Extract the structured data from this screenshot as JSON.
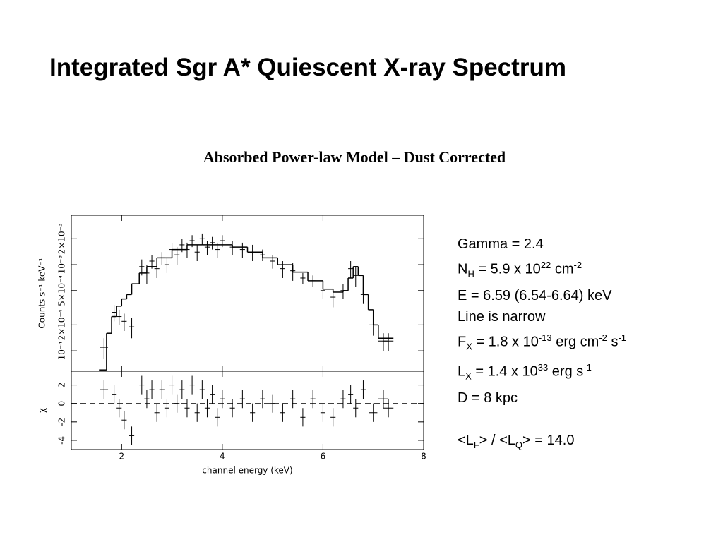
{
  "title": "Integrated Sgr A* Quiescent X-ray Spectrum",
  "subtitle": "Absorbed Power-law Model – Dust Corrected",
  "params": [
    [
      "Gamma = 2.4"
    ],
    [
      "N",
      {
        "sub": "H"
      },
      " = 5.9 x 10",
      {
        "sup": "22"
      },
      " cm",
      {
        "sup": "-2"
      }
    ],
    [
      "E = 6.59 (6.54-6.64) keV"
    ],
    [
      "Line is narrow"
    ],
    [
      "F",
      {
        "sub": "X"
      },
      " = 1.8 x 10",
      {
        "sup": "-13"
      },
      " erg cm",
      {
        "sup": "-2"
      },
      " s",
      {
        "sup": "-1"
      }
    ],
    [
      "L",
      {
        "sub": "X"
      },
      " = 1.4 x 10",
      {
        "sup": "33"
      },
      " erg s",
      {
        "sup": "-1"
      }
    ],
    [
      "D = 8 kpc"
    ],
    [
      "<L",
      {
        "sub": "F"
      },
      "> / <L",
      {
        "sub": "Q"
      },
      "> = 14.0"
    ]
  ],
  "chart_data": [
    {
      "type": "errorbar",
      "yscale": "log",
      "ylabel": "Counts s⁻¹ keV⁻¹",
      "xlim": [
        1,
        8
      ],
      "xticks": [
        2,
        4,
        6,
        8
      ],
      "ylim": [
        5.8e-05,
        0.00375
      ],
      "yticks": [
        {
          "value": 0.0001,
          "label": "10⁻⁴"
        },
        {
          "value": 0.0002,
          "label": "2×10⁻⁴"
        },
        {
          "value": 0.0005,
          "label": "5×10⁻⁴"
        },
        {
          "value": 0.001,
          "label": "10⁻³"
        },
        {
          "value": 0.002,
          "label": "2×10⁻³"
        }
      ],
      "series": [
        {
          "type": "errorbar",
          "color": "#000000",
          "x": [
            1.65,
            1.85,
            1.95,
            2.05,
            2.2,
            2.4,
            2.5,
            2.6,
            2.7,
            2.8,
            2.9,
            3.0,
            3.1,
            3.2,
            3.3,
            3.4,
            3.5,
            3.6,
            3.7,
            3.8,
            3.9,
            4.0,
            4.2,
            4.4,
            4.6,
            4.8,
            5.0,
            5.2,
            5.4,
            5.6,
            5.8,
            6.0,
            6.2,
            6.4,
            6.55,
            6.65,
            6.8,
            7.0,
            7.2,
            7.3
          ],
          "xerr": [
            0.08,
            0.05,
            0.05,
            0.05,
            0.05,
            0.05,
            0.05,
            0.05,
            0.05,
            0.05,
            0.05,
            0.05,
            0.05,
            0.05,
            0.05,
            0.05,
            0.05,
            0.05,
            0.05,
            0.05,
            0.05,
            0.05,
            0.05,
            0.05,
            0.05,
            0.05,
            0.05,
            0.05,
            0.05,
            0.05,
            0.05,
            0.05,
            0.05,
            0.05,
            0.05,
            0.05,
            0.05,
            0.08,
            0.1,
            0.1
          ],
          "values": [
            0.00011,
            0.00028,
            0.00025,
            0.00022,
            0.00019,
            0.00095,
            0.0008,
            0.0011,
            0.0009,
            0.0012,
            0.001,
            0.0015,
            0.0013,
            0.0017,
            0.0015,
            0.0019,
            0.0014,
            0.002,
            0.0016,
            0.0018,
            0.0015,
            0.0019,
            0.0016,
            0.0015,
            0.0014,
            0.0013,
            0.0011,
            0.0009,
            0.00085,
            0.0007,
            0.00065,
            0.0005,
            0.00042,
            0.0005,
            0.0009,
            0.00075,
            0.00045,
            0.0002,
            0.00013,
            0.00013
          ],
          "yerr": [
            3e-05,
            6e-05,
            5e-05,
            5e-05,
            5e-05,
            0.0002,
            0.0002,
            0.0002,
            0.0002,
            0.0002,
            0.0002,
            0.0003,
            0.0003,
            0.0003,
            0.0003,
            0.0003,
            0.0003,
            0.0003,
            0.0003,
            0.0003,
            0.0003,
            0.0003,
            0.0003,
            0.0003,
            0.0003,
            0.0002,
            0.0002,
            0.0002,
            0.0002,
            0.0001,
            0.0001,
            0.0001,
            0.0001,
            0.0001,
            0.0002,
            0.0002,
            0.0001,
            5e-05,
            3e-05,
            3e-05
          ]
        },
        {
          "type": "step",
          "color": "#000000",
          "x": [
            1.55,
            1.7,
            1.8,
            1.9,
            2.0,
            2.1,
            2.2,
            2.35,
            2.5,
            2.7,
            3.0,
            3.3,
            3.6,
            3.9,
            4.2,
            4.5,
            4.8,
            5.1,
            5.4,
            5.7,
            6.0,
            6.2,
            6.4,
            6.5,
            6.6,
            6.7,
            6.8,
            6.9,
            7.0,
            7.1,
            7.4
          ],
          "values": [
            6e-05,
            0.00016,
            0.00025,
            0.00033,
            0.0004,
            0.00045,
            0.0006,
            0.0008,
            0.00095,
            0.0012,
            0.0015,
            0.0017,
            0.0017,
            0.0017,
            0.0016,
            0.0014,
            0.0012,
            0.001,
            0.00082,
            0.00065,
            0.00052,
            0.00048,
            0.0005,
            0.0007,
            0.00095,
            0.00075,
            0.00045,
            0.0003,
            0.0002,
            0.00014,
            0.00014
          ]
        }
      ]
    },
    {
      "type": "errorbar",
      "ylabel": "χ",
      "xlabel": "channel energy (keV)",
      "xlim": [
        1,
        8
      ],
      "xticks": [
        2,
        4,
        6,
        8
      ],
      "ylim": [
        -5,
        3.5
      ],
      "yticks": [
        -4,
        -2,
        0,
        2
      ],
      "reference_line": 0,
      "series": [
        {
          "type": "errorbar",
          "color": "#000000",
          "x": [
            1.65,
            1.85,
            1.95,
            2.05,
            2.2,
            2.4,
            2.5,
            2.6,
            2.7,
            2.8,
            2.9,
            3.0,
            3.1,
            3.2,
            3.3,
            3.4,
            3.5,
            3.6,
            3.7,
            3.8,
            3.9,
            4.0,
            4.2,
            4.4,
            4.6,
            4.8,
            5.0,
            5.2,
            5.4,
            5.6,
            5.8,
            6.0,
            6.2,
            6.4,
            6.55,
            6.65,
            6.8,
            7.0,
            7.2,
            7.3
          ],
          "xerr": [
            0.08,
            0.05,
            0.05,
            0.05,
            0.05,
            0.05,
            0.05,
            0.05,
            0.05,
            0.05,
            0.05,
            0.05,
            0.05,
            0.05,
            0.05,
            0.05,
            0.05,
            0.05,
            0.05,
            0.05,
            0.05,
            0.05,
            0.05,
            0.05,
            0.05,
            0.05,
            0.05,
            0.05,
            0.05,
            0.05,
            0.05,
            0.05,
            0.05,
            0.05,
            0.05,
            0.05,
            0.05,
            0.08,
            0.1,
            0.1
          ],
          "values": [
            1.5,
            1.0,
            -0.5,
            -1.8,
            -3.5,
            2.0,
            0.5,
            1.5,
            -1.0,
            1.5,
            -0.5,
            2.0,
            0.0,
            1.5,
            -0.5,
            2.0,
            -1.0,
            1.5,
            -0.5,
            1.0,
            -1.5,
            0.5,
            -0.5,
            0.5,
            -1.0,
            0.5,
            0.0,
            -1.0,
            0.5,
            -1.5,
            0.5,
            -1.0,
            -1.5,
            0.5,
            1.0,
            -0.5,
            1.5,
            -1.0,
            0.5,
            -0.5
          ],
          "yerr": [
            1,
            1,
            1,
            1,
            1,
            1,
            1,
            1,
            1,
            1,
            1,
            1,
            1,
            1,
            1,
            1,
            1,
            1,
            1,
            1,
            1,
            1,
            1,
            1,
            1,
            1,
            1,
            1,
            1,
            1,
            1,
            1,
            1,
            1,
            1,
            1,
            1,
            1,
            1,
            1
          ]
        }
      ]
    }
  ]
}
